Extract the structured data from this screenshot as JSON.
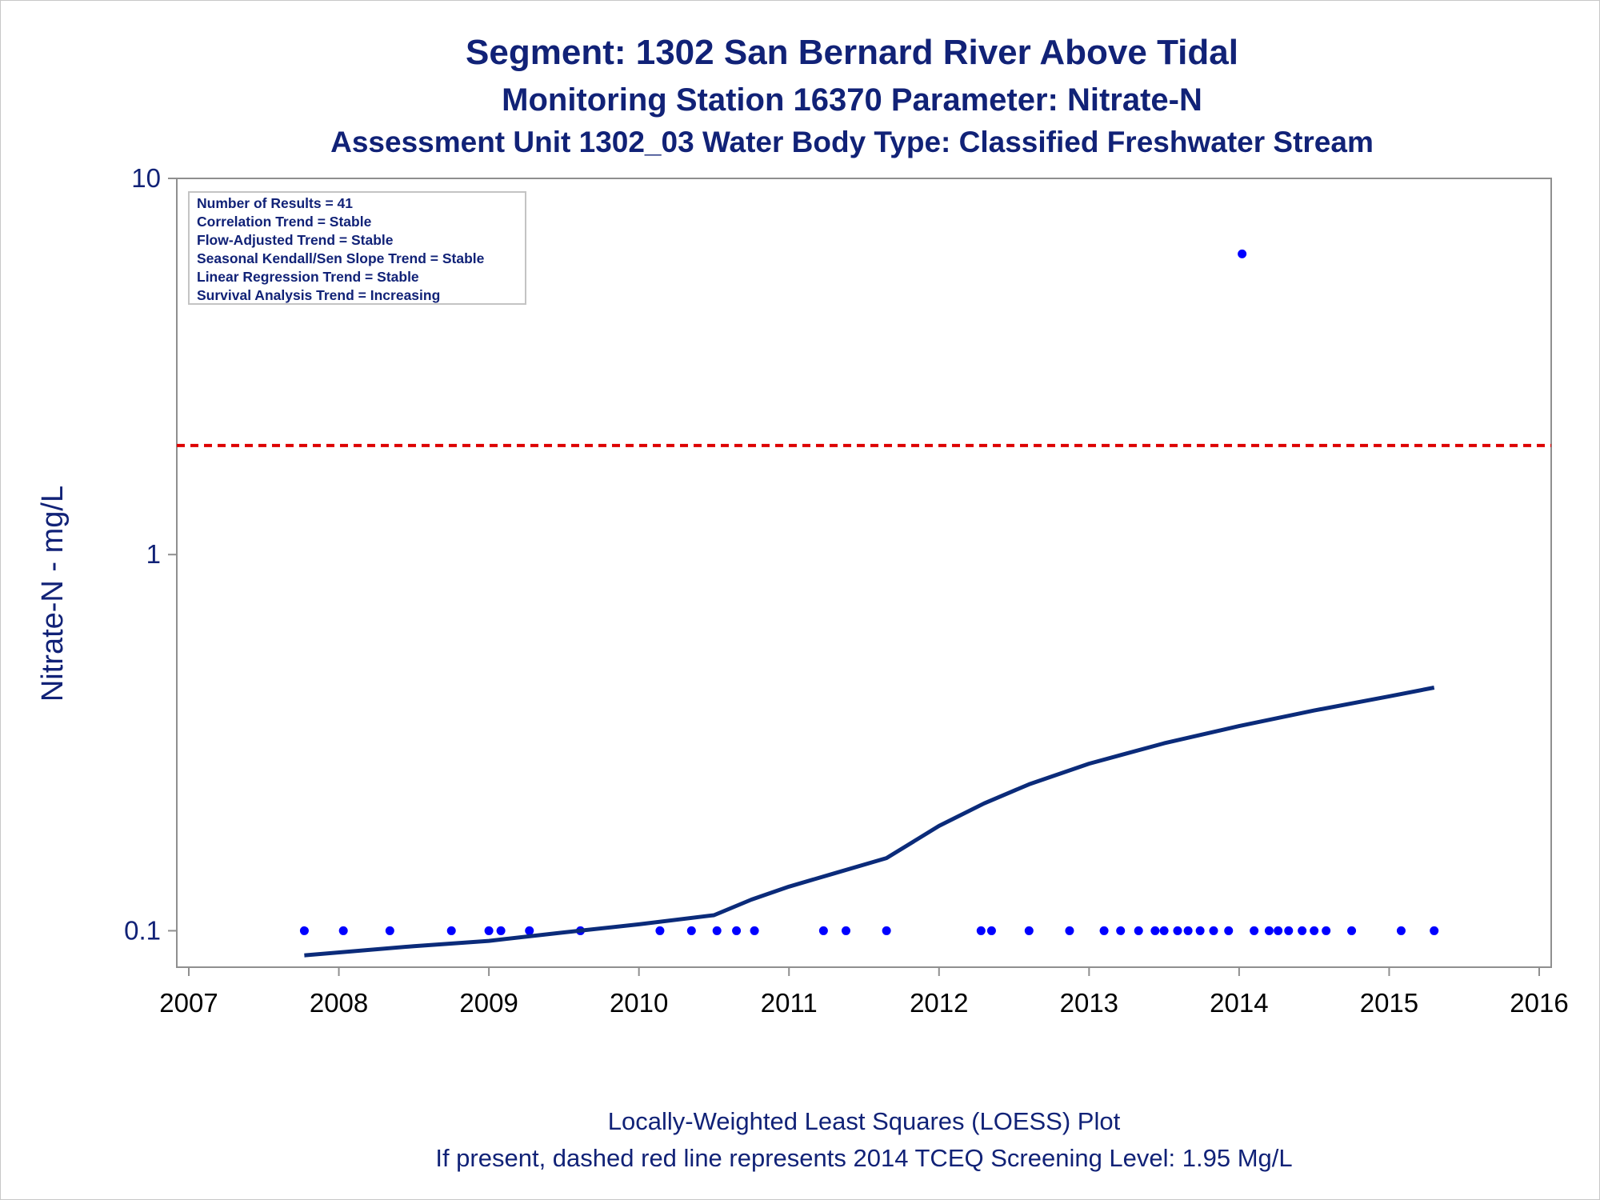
{
  "chart_data": {
    "type": "scatter",
    "title": "Segment: 1302  San Bernard River Above Tidal",
    "subtitle": "Monitoring Station 16370 Parameter: Nitrate-N",
    "subtitle2": "Assessment Unit 1302_03   Water Body Type: Classified Freshwater Stream",
    "ylabel": "Nitrate-N - mg/L",
    "xlabel": "",
    "y_scale": "log",
    "ylim": [
      0.08,
      10
    ],
    "xlim": [
      2006.92,
      2016.08
    ],
    "y_ticks": [
      {
        "value": 10,
        "label": "10"
      },
      {
        "value": 1,
        "label": "1"
      },
      {
        "value": 0.1,
        "label": "0.1"
      }
    ],
    "x_ticks": [
      2007,
      2008,
      2009,
      2010,
      2011,
      2012,
      2013,
      2014,
      2015,
      2016
    ],
    "grid": false,
    "stats_box": [
      "Number of Results = 41",
      "Correlation Trend = Stable",
      "Flow-Adjusted Trend = Stable",
      "Seasonal Kendall/Sen Slope Trend = Stable",
      "Linear Regression Trend = Stable",
      "Survival Analysis Trend = Increasing"
    ],
    "footnote": [
      "Locally-Weighted Least Squares (LOESS) Plot",
      "If present, dashed red line represents 2014 TCEQ Screening Level: 1.95 Mg/L"
    ],
    "screening_level": {
      "value": 1.95,
      "color": "#dd0000",
      "style": "dashed"
    },
    "series": [
      {
        "type": "scatter",
        "color": "#0000ff",
        "points": [
          {
            "x": 2007.77,
            "y": 0.1
          },
          {
            "x": 2008.03,
            "y": 0.1
          },
          {
            "x": 2008.34,
            "y": 0.1
          },
          {
            "x": 2008.75,
            "y": 0.1
          },
          {
            "x": 2009.0,
            "y": 0.1
          },
          {
            "x": 2009.08,
            "y": 0.1
          },
          {
            "x": 2009.27,
            "y": 0.1
          },
          {
            "x": 2009.61,
            "y": 0.1
          },
          {
            "x": 2010.14,
            "y": 0.1
          },
          {
            "x": 2010.35,
            "y": 0.1
          },
          {
            "x": 2010.52,
            "y": 0.1
          },
          {
            "x": 2010.65,
            "y": 0.1
          },
          {
            "x": 2010.77,
            "y": 0.1
          },
          {
            "x": 2011.23,
            "y": 0.1
          },
          {
            "x": 2011.38,
            "y": 0.1
          },
          {
            "x": 2011.65,
            "y": 0.1
          },
          {
            "x": 2012.28,
            "y": 0.1
          },
          {
            "x": 2012.35,
            "y": 0.1
          },
          {
            "x": 2012.6,
            "y": 0.1
          },
          {
            "x": 2012.87,
            "y": 0.1
          },
          {
            "x": 2013.1,
            "y": 0.1
          },
          {
            "x": 2013.21,
            "y": 0.1
          },
          {
            "x": 2013.33,
            "y": 0.1
          },
          {
            "x": 2013.44,
            "y": 0.1
          },
          {
            "x": 2013.5,
            "y": 0.1
          },
          {
            "x": 2013.59,
            "y": 0.1
          },
          {
            "x": 2013.66,
            "y": 0.1
          },
          {
            "x": 2013.74,
            "y": 0.1
          },
          {
            "x": 2013.83,
            "y": 0.1
          },
          {
            "x": 2013.93,
            "y": 0.1
          },
          {
            "x": 2014.02,
            "y": 6.3
          },
          {
            "x": 2014.1,
            "y": 0.1
          },
          {
            "x": 2014.2,
            "y": 0.1
          },
          {
            "x": 2014.26,
            "y": 0.1
          },
          {
            "x": 2014.33,
            "y": 0.1
          },
          {
            "x": 2014.42,
            "y": 0.1
          },
          {
            "x": 2014.5,
            "y": 0.1
          },
          {
            "x": 2014.58,
            "y": 0.1
          },
          {
            "x": 2014.75,
            "y": 0.1
          },
          {
            "x": 2015.08,
            "y": 0.1
          },
          {
            "x": 2015.3,
            "y": 0.1
          }
        ]
      },
      {
        "type": "line",
        "color": "#0b2b7a",
        "points": [
          {
            "x": 2007.77,
            "y": 0.086
          },
          {
            "x": 2008.5,
            "y": 0.091
          },
          {
            "x": 2009.0,
            "y": 0.094
          },
          {
            "x": 2009.5,
            "y": 0.099
          },
          {
            "x": 2010.0,
            "y": 0.104
          },
          {
            "x": 2010.5,
            "y": 0.11
          },
          {
            "x": 2010.75,
            "y": 0.121
          },
          {
            "x": 2011.0,
            "y": 0.131
          },
          {
            "x": 2011.3,
            "y": 0.142
          },
          {
            "x": 2011.65,
            "y": 0.156
          },
          {
            "x": 2012.0,
            "y": 0.19
          },
          {
            "x": 2012.3,
            "y": 0.218
          },
          {
            "x": 2012.6,
            "y": 0.245
          },
          {
            "x": 2013.0,
            "y": 0.278
          },
          {
            "x": 2013.5,
            "y": 0.315
          },
          {
            "x": 2014.0,
            "y": 0.35
          },
          {
            "x": 2014.5,
            "y": 0.385
          },
          {
            "x": 2015.0,
            "y": 0.42
          },
          {
            "x": 2015.3,
            "y": 0.443
          }
        ]
      }
    ]
  }
}
